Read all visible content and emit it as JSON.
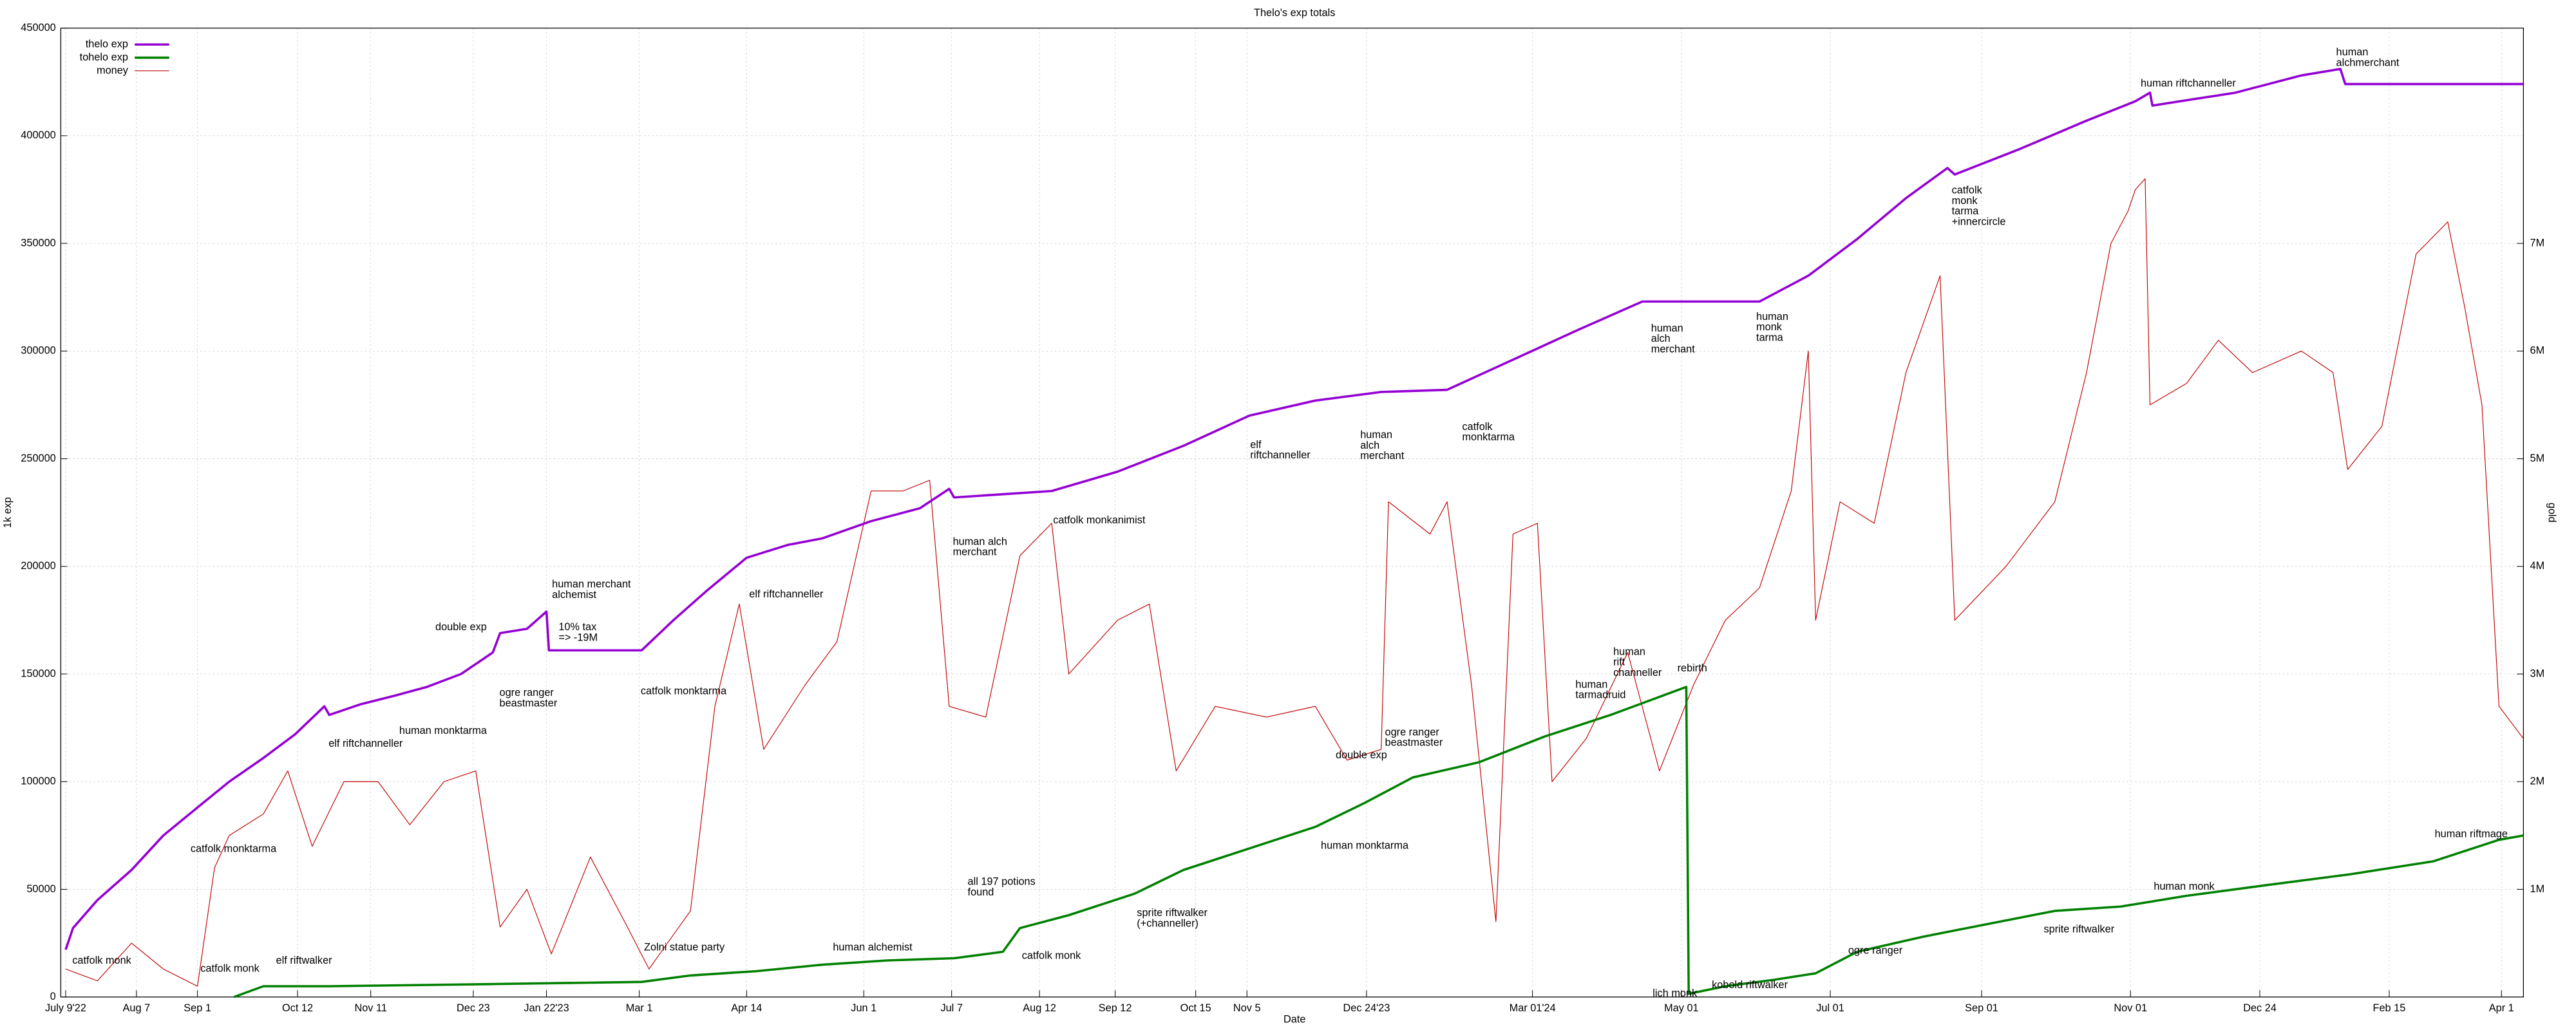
{
  "chart_data": {
    "type": "line",
    "title": "Thelo's exp totals",
    "xlabel": "Date",
    "ylabel": "1k exp",
    "y2label": "gold",
    "xlim": [
      -2,
      1007
    ],
    "xticks": [
      {
        "value": 0,
        "label": "July 9'22"
      },
      {
        "value": 29,
        "label": "Aug 7"
      },
      {
        "value": 54,
        "label": "Sep 1"
      },
      {
        "value": 95,
        "label": "Oct 12"
      },
      {
        "value": 125,
        "label": "Nov 11"
      },
      {
        "value": 167,
        "label": "Dec 23"
      },
      {
        "value": 197,
        "label": "Jan 22'23"
      },
      {
        "value": 235,
        "label": "Mar 1"
      },
      {
        "value": 279,
        "label": "Apr 14"
      },
      {
        "value": 327,
        "label": "Jun 1"
      },
      {
        "value": 363,
        "label": "Jul 7"
      },
      {
        "value": 399,
        "label": "Aug 12"
      },
      {
        "value": 430,
        "label": "Sep 12"
      },
      {
        "value": 463,
        "label": "Oct 15"
      },
      {
        "value": 484,
        "label": "Nov 5"
      },
      {
        "value": 533,
        "label": "Dec 24'23"
      },
      {
        "value": 601,
        "label": "Mar 01'24"
      },
      {
        "value": 662,
        "label": "May 01"
      },
      {
        "value": 723,
        "label": "Jul 01"
      },
      {
        "value": 785,
        "label": "Sep 01"
      },
      {
        "value": 846,
        "label": "Nov 01"
      },
      {
        "value": 899,
        "label": "Dec 24"
      },
      {
        "value": 952,
        "label": "Feb 15"
      },
      {
        "value": 998,
        "label": "Apr 1"
      }
    ],
    "ylim": [
      0,
      450000
    ],
    "yticks": [
      0,
      50000,
      100000,
      150000,
      200000,
      250000,
      300000,
      350000,
      400000,
      450000
    ],
    "y2lim": [
      0,
      9000000
    ],
    "y2ticks": [
      {
        "value": 1000000,
        "label": "1M"
      },
      {
        "value": 2000000,
        "label": "2M"
      },
      {
        "value": 3000000,
        "label": "3M"
      },
      {
        "value": 4000000,
        "label": "4M"
      },
      {
        "value": 5000000,
        "label": "5M"
      },
      {
        "value": 6000000,
        "label": "6M"
      },
      {
        "value": 7000000,
        "label": "7M"
      }
    ],
    "grid": true,
    "legend": "top-left",
    "series": [
      {
        "name": "thelo exp",
        "color": "#9400d3",
        "width": 1.4,
        "x": [
          0,
          3,
          13,
          27,
          40,
          54,
          67,
          81,
          94,
          106,
          108,
          121,
          135,
          148,
          162,
          175,
          178,
          189,
          197,
          198,
          215,
          236,
          249,
          263,
          279,
          296,
          310,
          330,
          350,
          362,
          364,
          404,
          431,
          458,
          485,
          512,
          539,
          566,
          593,
          620,
          646,
          667,
          694,
          714,
          734,
          754,
          771,
          774,
          801,
          828,
          848,
          854,
          855,
          889,
          916,
          932,
          934,
          1007
        ],
        "values": [
          22000,
          32000,
          45000,
          59000,
          75000,
          88000,
          100000,
          111000,
          122000,
          135000,
          131000,
          136000,
          140000,
          144000,
          150000,
          160000,
          169000,
          171000,
          179000,
          161000,
          161000,
          161000,
          175000,
          189000,
          204000,
          210000,
          213000,
          221000,
          227000,
          236000,
          232000,
          235000,
          244000,
          256000,
          270000,
          277000,
          281000,
          282000,
          296000,
          310000,
          323000,
          323000,
          323000,
          335000,
          352000,
          371000,
          385000,
          382000,
          394000,
          407000,
          416000,
          420000,
          414000,
          420000,
          428000,
          431000,
          424000,
          424000
        ]
      },
      {
        "name": "tohelo exp",
        "color": "#008000",
        "width": 1.4,
        "x": [
          69,
          81,
          108,
          175,
          236,
          256,
          283,
          310,
          337,
          364,
          384,
          391,
          411,
          438,
          458,
          485,
          512,
          532,
          552,
          579,
          606,
          633,
          664,
          665,
          680,
          700,
          717,
          734,
          761,
          788,
          815,
          842,
          869,
          902,
          936,
          970,
          997,
          1007
        ],
        "values": [
          0,
          5000,
          5000,
          6000,
          7000,
          10000,
          12000,
          15000,
          17000,
          18000,
          21000,
          32000,
          38000,
          48000,
          59000,
          69000,
          79000,
          90000,
          102000,
          109000,
          121000,
          131000,
          144000,
          1500,
          5000,
          8000,
          11000,
          21000,
          28000,
          34000,
          40000,
          42000,
          47000,
          52000,
          57000,
          63000,
          73000,
          75000
        ]
      },
      {
        "name": "money",
        "color": "#c00000",
        "width": 0.45,
        "axis": "y2",
        "x": [
          0,
          13,
          27,
          40,
          54,
          61,
          67,
          81,
          91,
          101,
          114,
          128,
          141,
          155,
          168,
          178,
          189,
          199,
          215,
          229,
          239,
          256,
          266,
          276,
          286,
          303,
          316,
          330,
          343,
          354,
          362,
          377,
          391,
          404,
          411,
          431,
          444,
          455,
          471,
          492,
          512,
          525,
          539,
          542,
          559,
          566,
          576,
          586,
          593,
          603,
          609,
          623,
          640,
          653,
          667,
          680,
          694,
          707,
          714,
          717,
          727,
          741,
          754,
          768,
          774,
          795,
          815,
          828,
          838,
          845,
          848,
          852,
          854,
          869,
          882,
          896,
          916,
          929,
          935,
          949,
          963,
          976,
          983,
          990,
          997,
          1007
        ],
        "values": [
          260000,
          150000,
          500000,
          260000,
          100000,
          1200000,
          1500000,
          1700000,
          2100000,
          1400000,
          2000000,
          2000000,
          1600000,
          2000000,
          2100000,
          650000,
          1000000,
          400000,
          1300000,
          700000,
          260000,
          800000,
          2700000,
          3650000,
          2300000,
          2900000,
          3300000,
          4700000,
          4700000,
          4800000,
          2700000,
          2600000,
          4100000,
          4400000,
          3000000,
          3500000,
          3650000,
          2100000,
          2700000,
          2600000,
          2700000,
          2200000,
          2300000,
          4600000,
          4300000,
          4600000,
          2900000,
          700000,
          4300000,
          4400000,
          2000000,
          2400000,
          3200000,
          2100000,
          2900000,
          3500000,
          3800000,
          4700000,
          6000000,
          3500000,
          4600000,
          4400000,
          5800000,
          6700000,
          3500000,
          4000000,
          4600000,
          5800000,
          7000000,
          7300000,
          7500000,
          7600000,
          5500000,
          5700000,
          6100000,
          5800000,
          6000000,
          5800000,
          4900000,
          5300000,
          6900000,
          7200000,
          6400000,
          5500000,
          2700000,
          2400000
        ]
      }
    ],
    "annotations": [
      [
        "catfolk monk"
      ],
      [
        "catfolk monk"
      ],
      [
        "elf riftwalker"
      ],
      [
        "catfolk monktarma"
      ],
      [
        "elf riftchanneller"
      ],
      [
        "human monktarma"
      ],
      [
        "double exp"
      ],
      [
        "ogre ranger",
        "beastmaster"
      ],
      [
        "human merchant",
        "alchemist"
      ],
      [
        "10% tax",
        "=> -19M"
      ],
      [
        "catfolk monktarma"
      ],
      [
        "Zolni statue party"
      ],
      [
        "elf riftchanneller"
      ],
      [
        "human alchemist"
      ],
      [
        "human alch",
        "merchant"
      ],
      [
        "all 197 potions",
        "found"
      ],
      [
        "catfolk monk"
      ],
      [
        "catfolk monkanimist"
      ],
      [
        "sprite riftwalker",
        "(+channeller)"
      ],
      [
        "elf",
        "riftchanneller"
      ],
      [
        "human monktarma"
      ],
      [
        "human",
        "alch",
        "merchant"
      ],
      [
        "double exp"
      ],
      [
        "ogre ranger",
        "beastmaster"
      ],
      [
        "catfolk",
        "monktarma"
      ],
      [
        "human",
        "tarmadruid"
      ],
      [
        "human",
        "rift",
        "channeller"
      ],
      [
        "rebirth"
      ],
      [
        "lich monk"
      ],
      [
        "kobold riftwalker"
      ],
      [
        "human",
        "alch",
        "merchant"
      ],
      [
        "human",
        "monk",
        "tarma"
      ],
      [
        "ogre ranger"
      ],
      [
        "catfolk",
        "monk",
        "tarma",
        "+innercircle"
      ],
      [
        "sprite riftwalker"
      ],
      [
        "human riftchanneller"
      ],
      [
        "human monk"
      ],
      [
        "human",
        "alchmerchant"
      ],
      [
        "human riftmage"
      ]
    ]
  }
}
